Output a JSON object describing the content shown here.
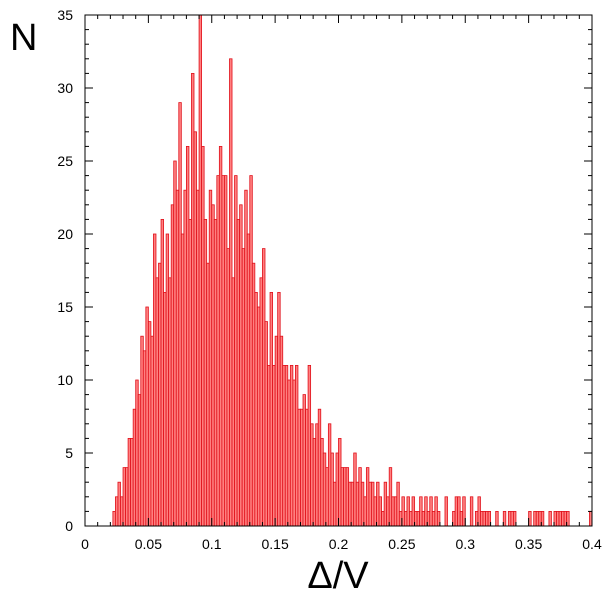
{
  "chart_data": {
    "type": "bar",
    "title": "",
    "xlabel": "Δ/V",
    "ylabel": "N",
    "xlim": [
      0,
      0.4
    ],
    "ylim": [
      0,
      35
    ],
    "x_ticks": [
      "0",
      "0.05",
      "0.1",
      "0.15",
      "0.2",
      "0.25",
      "0.3",
      "0.35",
      "0.4"
    ],
    "y_ticks": [
      "0",
      "5",
      "10",
      "15",
      "20",
      "25",
      "30",
      "35"
    ],
    "bin_width": 0.002,
    "grid": false,
    "legend": "none",
    "colors": {
      "fill": "#ff8080",
      "edge": "#e0101a",
      "axis": "#000000"
    },
    "x": [
      0.023,
      0.025,
      0.027,
      0.029,
      0.031,
      0.033,
      0.035,
      0.037,
      0.039,
      0.041,
      0.043,
      0.045,
      0.047,
      0.049,
      0.051,
      0.053,
      0.055,
      0.057,
      0.059,
      0.061,
      0.063,
      0.065,
      0.067,
      0.069,
      0.071,
      0.073,
      0.075,
      0.077,
      0.079,
      0.081,
      0.083,
      0.085,
      0.087,
      0.089,
      0.091,
      0.093,
      0.095,
      0.097,
      0.099,
      0.101,
      0.103,
      0.105,
      0.107,
      0.109,
      0.111,
      0.113,
      0.115,
      0.117,
      0.119,
      0.121,
      0.123,
      0.125,
      0.127,
      0.129,
      0.131,
      0.133,
      0.135,
      0.137,
      0.139,
      0.141,
      0.143,
      0.145,
      0.147,
      0.149,
      0.151,
      0.153,
      0.155,
      0.157,
      0.159,
      0.161,
      0.163,
      0.165,
      0.167,
      0.169,
      0.171,
      0.173,
      0.175,
      0.177,
      0.179,
      0.181,
      0.183,
      0.185,
      0.187,
      0.189,
      0.191,
      0.193,
      0.195,
      0.197,
      0.199,
      0.201,
      0.203,
      0.205,
      0.207,
      0.209,
      0.211,
      0.213,
      0.215,
      0.217,
      0.219,
      0.221,
      0.223,
      0.225,
      0.227,
      0.229,
      0.231,
      0.233,
      0.235,
      0.237,
      0.239,
      0.241,
      0.243,
      0.245,
      0.247,
      0.249,
      0.251,
      0.253,
      0.255,
      0.257,
      0.259,
      0.261,
      0.263,
      0.265,
      0.267,
      0.269,
      0.271,
      0.273,
      0.275,
      0.277,
      0.279,
      0.285,
      0.291,
      0.293,
      0.295,
      0.297,
      0.299,
      0.305,
      0.309,
      0.311,
      0.313,
      0.315,
      0.317,
      0.319,
      0.325,
      0.331,
      0.335,
      0.337,
      0.339,
      0.351,
      0.355,
      0.357,
      0.359,
      0.361,
      0.367,
      0.371,
      0.373,
      0.375,
      0.377,
      0.379,
      0.381,
      0.399
    ],
    "values": [
      1,
      2,
      3,
      2,
      4,
      4,
      6,
      6,
      8,
      10,
      9,
      13,
      12,
      15,
      14,
      13,
      20,
      17,
      18,
      21,
      16,
      20,
      17,
      22,
      25,
      23,
      29,
      20,
      23,
      26,
      21,
      31,
      27,
      23,
      35,
      26,
      21,
      18,
      23,
      22,
      21,
      24,
      26,
      24,
      24,
      19,
      32,
      17,
      24,
      21,
      22,
      19,
      23,
      20,
      24,
      18,
      16,
      15,
      17,
      19,
      14,
      11,
      16,
      11,
      13,
      16,
      13,
      11,
      11,
      10,
      11,
      10,
      11,
      8,
      8,
      9,
      8,
      11,
      7,
      6,
      7,
      8,
      6,
      5,
      4,
      7,
      5,
      3,
      5,
      6,
      4,
      4,
      4,
      3,
      3,
      5,
      3,
      4,
      3,
      2,
      4,
      3,
      3,
      2,
      3,
      2,
      1,
      3,
      2,
      4,
      2,
      2,
      3,
      1,
      2,
      1,
      2,
      1,
      2,
      1,
      1,
      2,
      1,
      2,
      1,
      2,
      1,
      2,
      1,
      2,
      1,
      2,
      2,
      1,
      2,
      2,
      1,
      2,
      1,
      1,
      1,
      1,
      1,
      1,
      1,
      1,
      1,
      1,
      1,
      1,
      1,
      1,
      1,
      1,
      1,
      1,
      1,
      1,
      1,
      1
    ]
  }
}
